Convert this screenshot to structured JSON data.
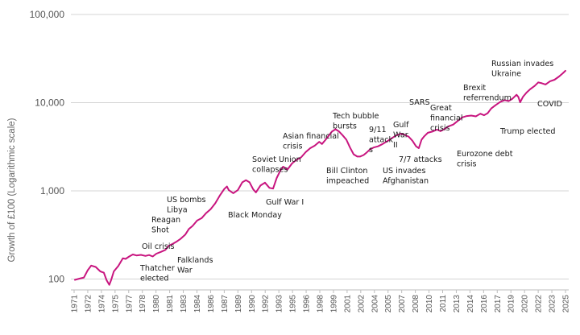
{
  "chart_data": {
    "type": "line",
    "ylabel": "Growth of £100 (Logarithmic scale)",
    "xlabel": "",
    "yscale": "log",
    "ylim": [
      85,
      100000
    ],
    "xlim": [
      1971,
      2025.3
    ],
    "grid": "horizontal",
    "line_color": "#c8157f",
    "y_ticks": [
      {
        "value": 100,
        "label": "100"
      },
      {
        "value": 1000,
        "label": "1,000"
      },
      {
        "value": 10000,
        "label": "10,000"
      },
      {
        "value": 100000,
        "label": "100,000"
      }
    ],
    "x_ticks": [
      "1971",
      "1972",
      "1974",
      "1975",
      "1977",
      "1978",
      "1980",
      "1981",
      "1983",
      "1984",
      "1986",
      "1987",
      "1989",
      "1990",
      "1992",
      "1993",
      "1995",
      "1996",
      "1998",
      "1999",
      "2001",
      "2002",
      "2004",
      "2005",
      "2007",
      "2008",
      "2010",
      "2011",
      "2013",
      "2014",
      "2016",
      "2017",
      "2019",
      "2020",
      "2022",
      "2023",
      "2025"
    ],
    "series": [
      {
        "x": [
          1971.0,
          1971.5,
          1972.0,
          1972.4,
          1972.8,
          1973.3,
          1973.8,
          1974.2,
          1974.5,
          1974.8,
          1975.0,
          1975.3,
          1975.8,
          1976.3,
          1976.6,
          1977.0,
          1977.4,
          1977.8,
          1978.3,
          1978.8,
          1979.2,
          1979.6,
          1980.0,
          1980.5,
          1981.0,
          1981.4,
          1981.8,
          1982.2,
          1982.7,
          1983.2,
          1983.6,
          1984.0,
          1984.5,
          1985.0,
          1985.5,
          1986.0,
          1986.5,
          1987.0,
          1987.5,
          1987.8,
          1988.0,
          1988.5,
          1989.0,
          1989.5,
          1989.9,
          1990.3,
          1990.7,
          1991.0,
          1991.5,
          1992.0,
          1992.5,
          1992.9,
          1993.3,
          1993.7,
          1994.0,
          1994.5,
          1995.0,
          1995.5,
          1996.0,
          1996.5,
          1997.0,
          1997.5,
          1998.0,
          1998.3,
          1998.7,
          1999.0,
          1999.4,
          1999.8,
          2000.2,
          2000.6,
          2001.0,
          2001.4,
          2001.8,
          2002.2,
          2002.5,
          2002.9,
          2003.2,
          2003.6,
          2004.0,
          2004.5,
          2005.0,
          2005.5,
          2006.0,
          2006.5,
          2007.0,
          2007.5,
          2007.9,
          2008.3,
          2008.7,
          2009.0,
          2009.3,
          2009.6,
          2010.0,
          2010.5,
          2011.0,
          2011.4,
          2011.8,
          2012.3,
          2012.8,
          2013.3,
          2013.8,
          2014.3,
          2014.8,
          2015.3,
          2015.8,
          2016.2,
          2016.6,
          2017.0,
          2017.5,
          2018.0,
          2018.5,
          2018.9,
          2019.3,
          2019.8,
          2020.0,
          2020.2,
          2020.5,
          2020.9,
          2021.3,
          2021.8,
          2022.2,
          2022.6,
          2023.0,
          2023.5,
          2024.0,
          2024.5,
          2024.9,
          2025.2
        ],
        "y": [
          98,
          101,
          104,
          125,
          142,
          137,
          122,
          118,
          97,
          86,
          97,
          122,
          141,
          172,
          169,
          180,
          190,
          185,
          188,
          183,
          187,
          180,
          194,
          203,
          214,
          240,
          250,
          264,
          287,
          320,
          370,
          400,
          460,
          490,
          560,
          620,
          720,
          880,
          1050,
          1120,
          1020,
          940,
          1020,
          1250,
          1320,
          1250,
          1040,
          960,
          1150,
          1240,
          1080,
          1060,
          1400,
          1700,
          1880,
          1750,
          2050,
          2250,
          2400,
          2750,
          3050,
          3250,
          3600,
          3400,
          3800,
          4150,
          4700,
          5000,
          4700,
          4250,
          3800,
          3100,
          2600,
          2450,
          2450,
          2550,
          2700,
          2950,
          3100,
          3200,
          3400,
          3650,
          3950,
          4250,
          4450,
          4300,
          4100,
          3700,
          3200,
          3050,
          3800,
          4150,
          4550,
          4700,
          4950,
          4750,
          5000,
          5400,
          5650,
          6200,
          6800,
          7050,
          7150,
          7000,
          7500,
          7200,
          7600,
          8600,
          9400,
          10200,
          10700,
          10400,
          11000,
          12300,
          11600,
          10100,
          11600,
          13000,
          14200,
          15500,
          17000,
          16600,
          16100,
          17500,
          18200,
          19800,
          21500,
          23000
        ]
      }
    ],
    "annotations": [
      {
        "lines": [
          "Thatcher",
          "elected"
        ]
      },
      {
        "lines": [
          "Oil crisis"
        ]
      },
      {
        "lines": [
          "Reagan",
          "Shot"
        ]
      },
      {
        "lines": [
          "US bombs",
          "Libya"
        ]
      },
      {
        "lines": [
          "Falklands",
          "War"
        ]
      },
      {
        "lines": [
          "Black Monday"
        ]
      },
      {
        "lines": [
          "Soviet Union",
          "collapses"
        ]
      },
      {
        "lines": [
          "Gulf War I"
        ]
      },
      {
        "lines": [
          "Asian financial",
          "crisis"
        ]
      },
      {
        "lines": [
          "Bill Clinton",
          "impeached"
        ]
      },
      {
        "lines": [
          "Tech bubble",
          "bursts"
        ]
      },
      {
        "lines": [
          "9/11",
          "attack",
          "s"
        ]
      },
      {
        "lines": [
          "Gulf",
          "War",
          "II"
        ]
      },
      {
        "lines": [
          "US invades",
          "Afghanistan"
        ]
      },
      {
        "lines": [
          "7/7 attacks"
        ]
      },
      {
        "lines": [
          "SARS"
        ]
      },
      {
        "lines": [
          "Great",
          "financial",
          "crisis"
        ]
      },
      {
        "lines": [
          "Eurozone debt",
          "crisis"
        ]
      },
      {
        "lines": [
          "Brexit",
          "referrendum"
        ]
      },
      {
        "lines": [
          "Trump elected"
        ]
      },
      {
        "lines": [
          "Russian invades",
          "Ukraine"
        ]
      },
      {
        "lines": [
          "COVID"
        ]
      }
    ]
  }
}
